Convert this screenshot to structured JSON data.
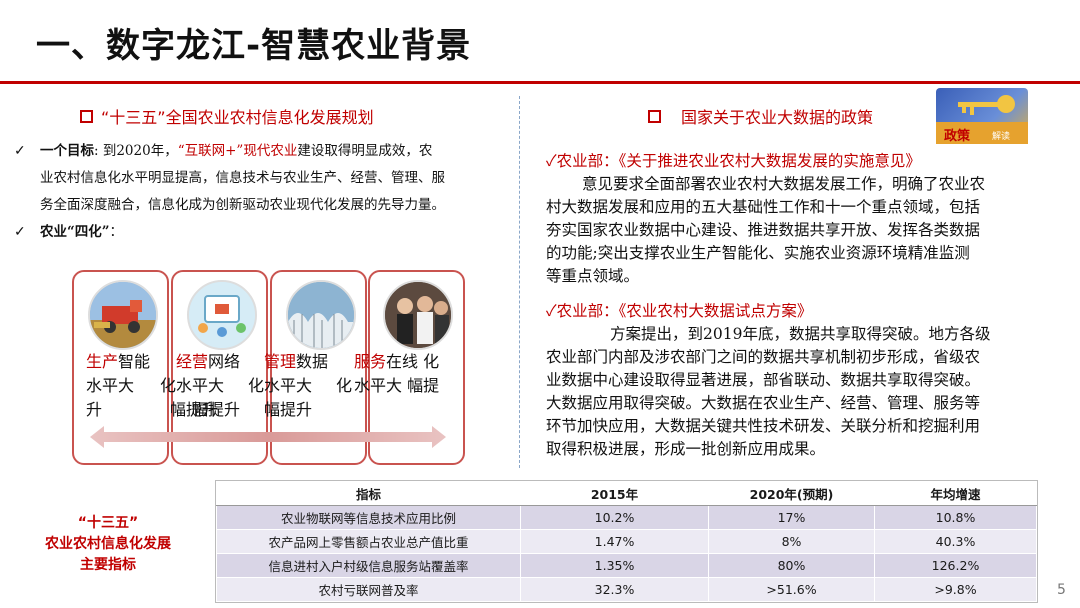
{
  "page": {
    "title": "一、数字龙江-智慧农业背景",
    "page_number": "5"
  },
  "left": {
    "heading": "“十三五”全国农业农村信息化发展规划",
    "goal_label": "一个目标",
    "goal_pre": ": 到2020年，",
    "goal_highlight": "“互联网+”现代农业",
    "goal_line1_rest": "建设取得明显成效，农",
    "goal_line2": "业农村信息化水平明显提高，信息技术与农业生产、经营、管理、服",
    "goal_line3": "务全面深度融合，信息化成为创新驱动农业现代化发展的先导力量。",
    "four_label": "农业“四化”",
    "four_colon": "：",
    "cards": [
      {
        "r": "生产",
        "l1": "智能",
        "l2": "水平大",
        "l3": "升",
        "l2b": "化",
        "l3b": "幅提升"
      },
      {
        "r": "经营",
        "l1": "网络",
        "l2": "水平大",
        "l3": "幅提升",
        "l2b": "化"
      },
      {
        "r": "管理",
        "l1": "数据",
        "l2": "水平大",
        "l3": "幅提升",
        "l2b": "化"
      },
      {
        "r": "服务",
        "l1": "在线",
        "l2": "水平大",
        "l3": "",
        "l1b": "化",
        "l2b": "幅提"
      }
    ]
  },
  "right": {
    "heading": "国家关于农业大数据的政策",
    "policy_badge": "政策",
    "policy_badge_sub": "解读",
    "p1_title": "农业部：《关于推进农业农村大数据发展的实施意见》",
    "p1_lines": [
      "意见要求全面部署农业农村大数据发展工作，明确了农业农",
      "村大数据发展和应用的五大基础性工作和十一个重点领域，包括",
      "夯实国家农业数据中心建设、推进数据共享开放、发挥各类数据",
      "的功能;突出支撑农业生产智能化、实施农业资源环境精准监测",
      "等重点领域。"
    ],
    "p2_title": "农业部：《农业农村大数据试点方案》",
    "p2_lines": [
      "方案提出，到2019年底，数据共享取得突破。地方各级",
      "农业部门内部及涉农部门之间的数据共享机制初步形成，省级农",
      "业数据中心建设取得显著进展，部省联动、数据共享取得突破。",
      "大数据应用取得突破。大数据在农业生产、经营、管理、服务等",
      "环节加快应用，大数据关键共性技术研发、关联分析和挖掘利用",
      "取得积极进展，形成一批创新应用成果。"
    ]
  },
  "indicators": {
    "side_label_l1": "“十三五”",
    "side_label_l2": "农业农村信息化发展",
    "side_label_l3": "主要指标",
    "headers": [
      "指标",
      "2015年",
      "2020年(预期)",
      "年均增速"
    ],
    "rows": [
      [
        "农业物联网等信息技术应用比例",
        "10.2%",
        "17%",
        "10.8%"
      ],
      [
        "农产品网上零售额占农业总产值比重",
        "1.47%",
        "8%",
        "40.3%"
      ],
      [
        "信息进村入户村级信息服务站覆盖率",
        "1.35%",
        "80%",
        "126.2%"
      ],
      [
        "农村亏联网普及率",
        "32.3%",
        ">51.6%",
        ">9.8%"
      ]
    ]
  },
  "colors": {
    "accent_red": "#c00000",
    "table_row_dark": "#d9d5e6",
    "table_row_light": "#eceaf3"
  }
}
